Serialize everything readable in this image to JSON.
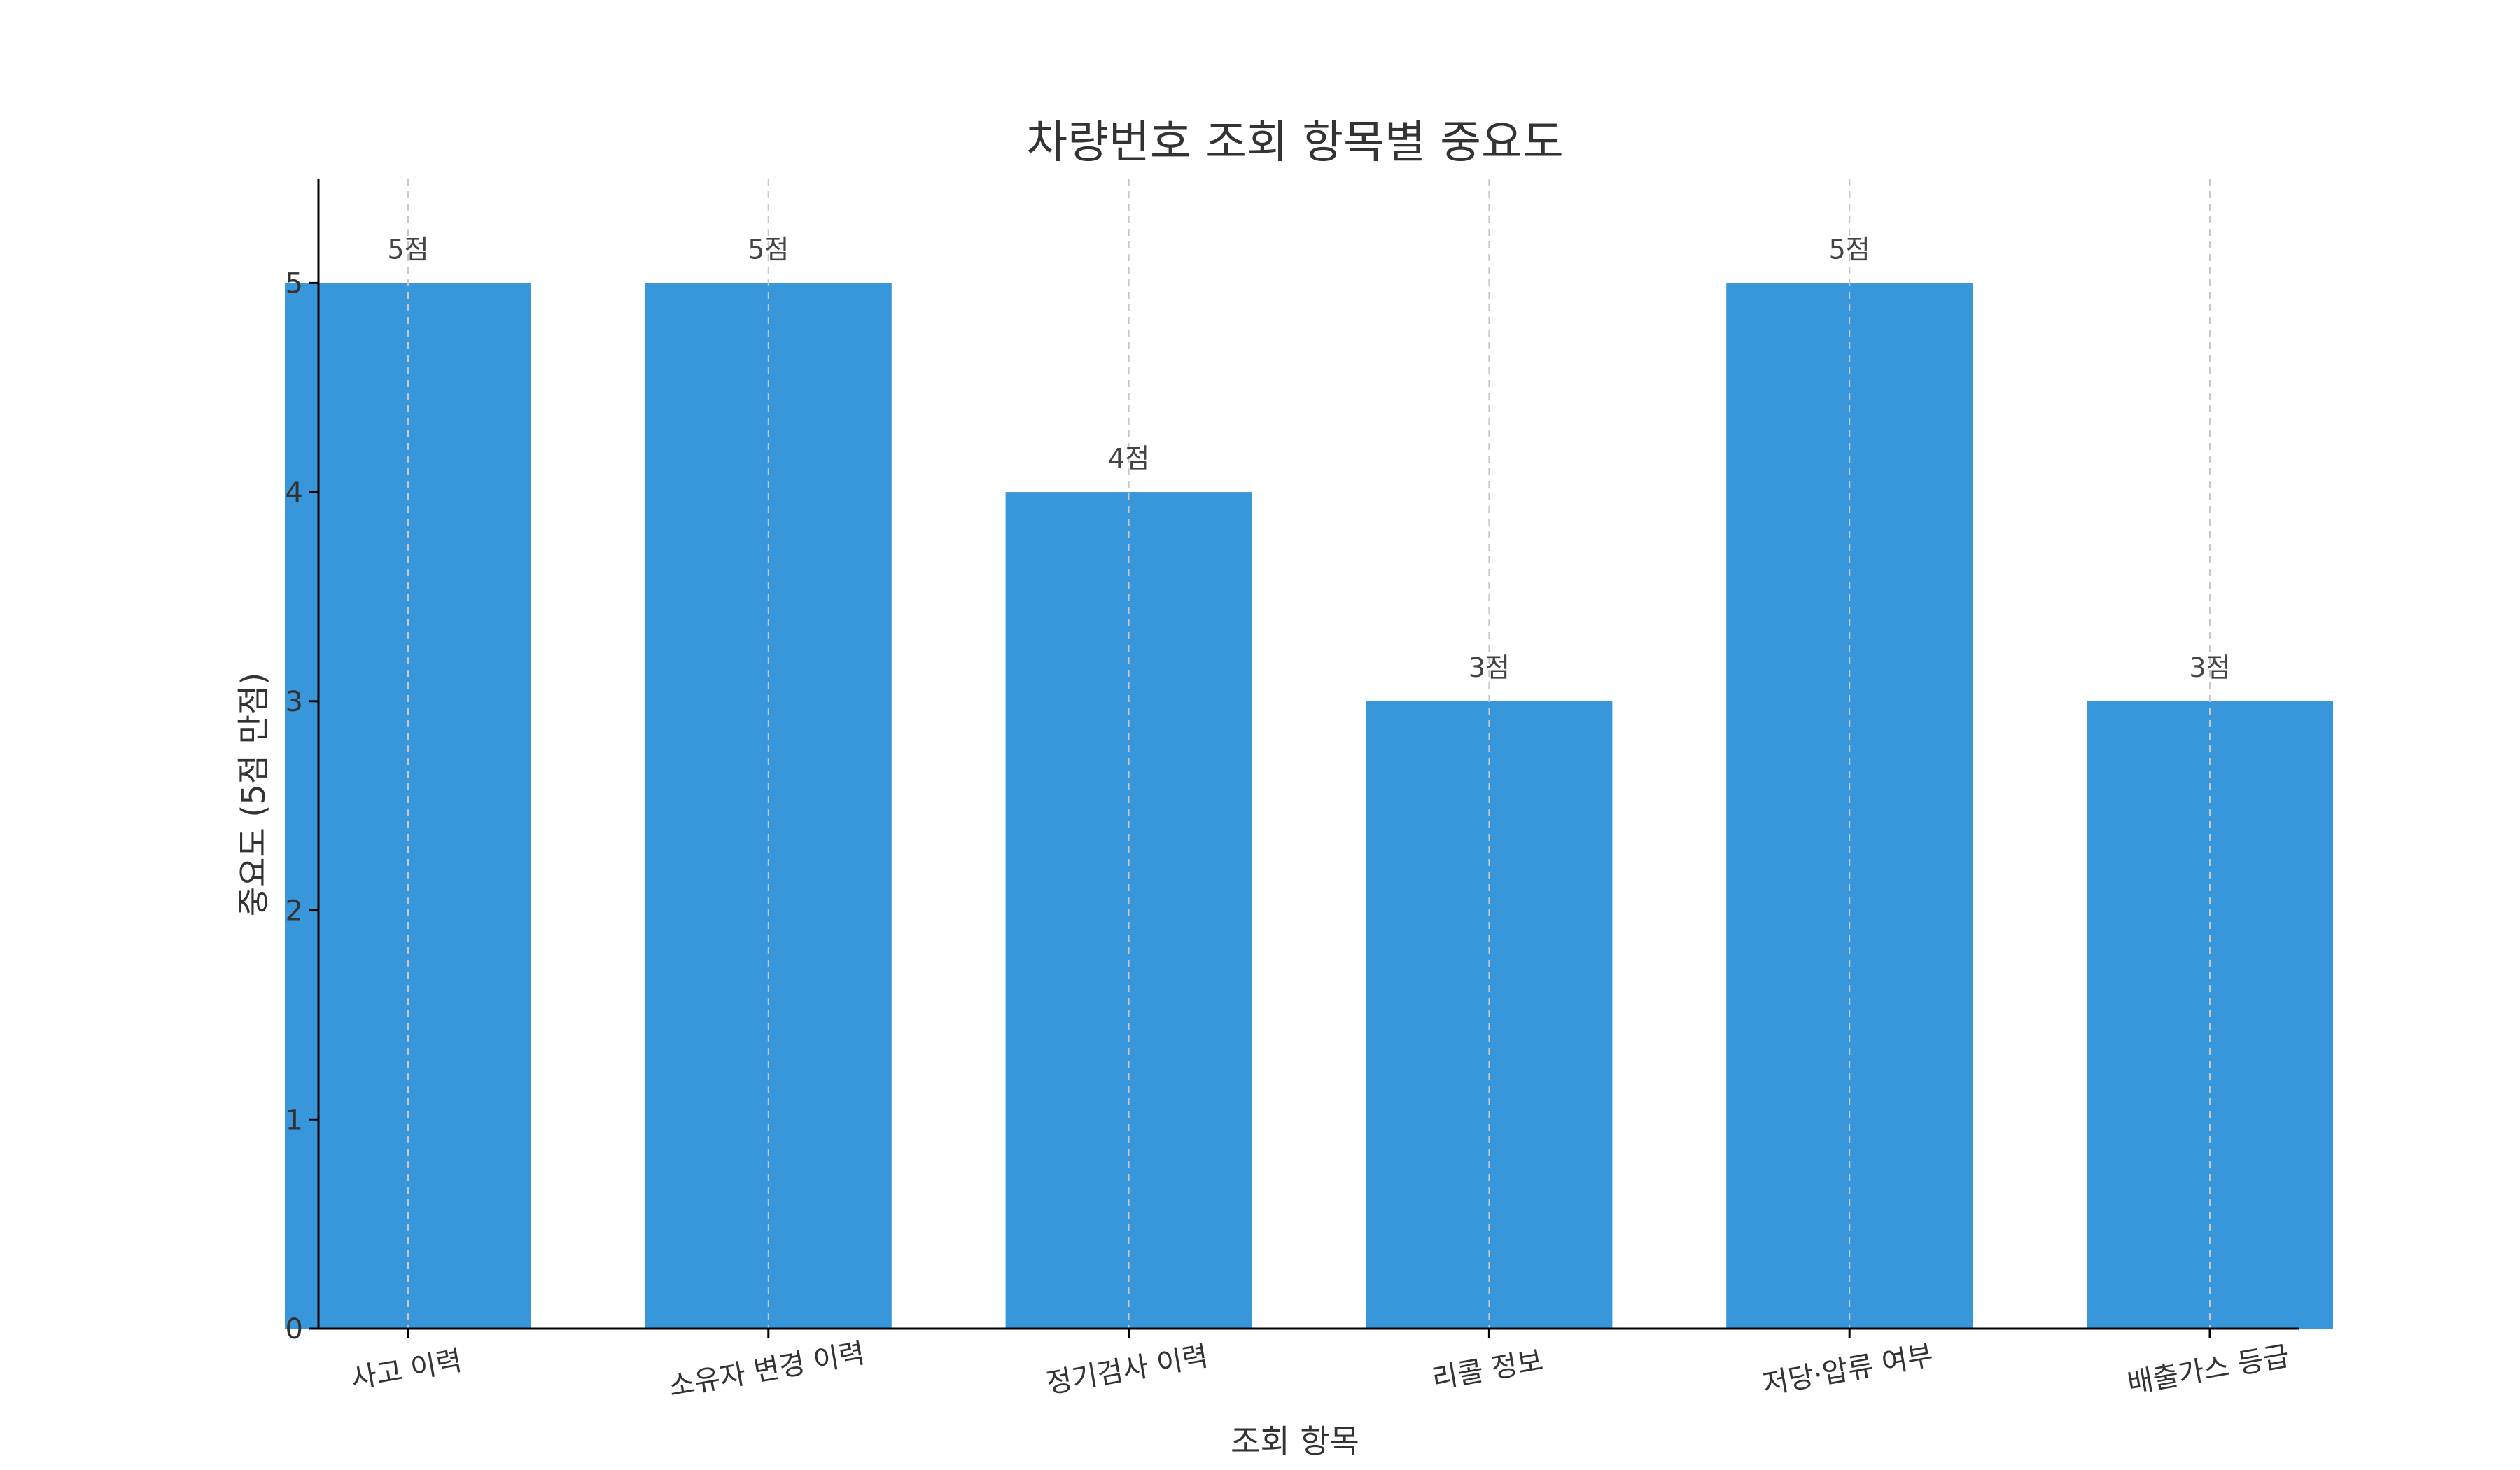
{
  "chart_data": {
    "type": "bar",
    "title": "차량번호 조회 항목별 중요도",
    "xlabel": "조회 항목",
    "ylabel": "중요도 (5점 만점)",
    "categories": [
      "사고 이력",
      "소유자 변경 이력",
      "정기검사 이력",
      "리콜 정보",
      "저당·압류 여부",
      "배출가스 등급"
    ],
    "values": [
      5,
      5,
      4,
      3,
      5,
      3
    ],
    "value_labels": [
      "5점",
      "5점",
      "4점",
      "3점",
      "5점",
      "3점"
    ],
    "ylim": [
      0,
      5.5
    ],
    "yticks": [
      0,
      1,
      2,
      3,
      4,
      5
    ],
    "grid": "x-dashed",
    "bar_color": "#3897DB"
  }
}
